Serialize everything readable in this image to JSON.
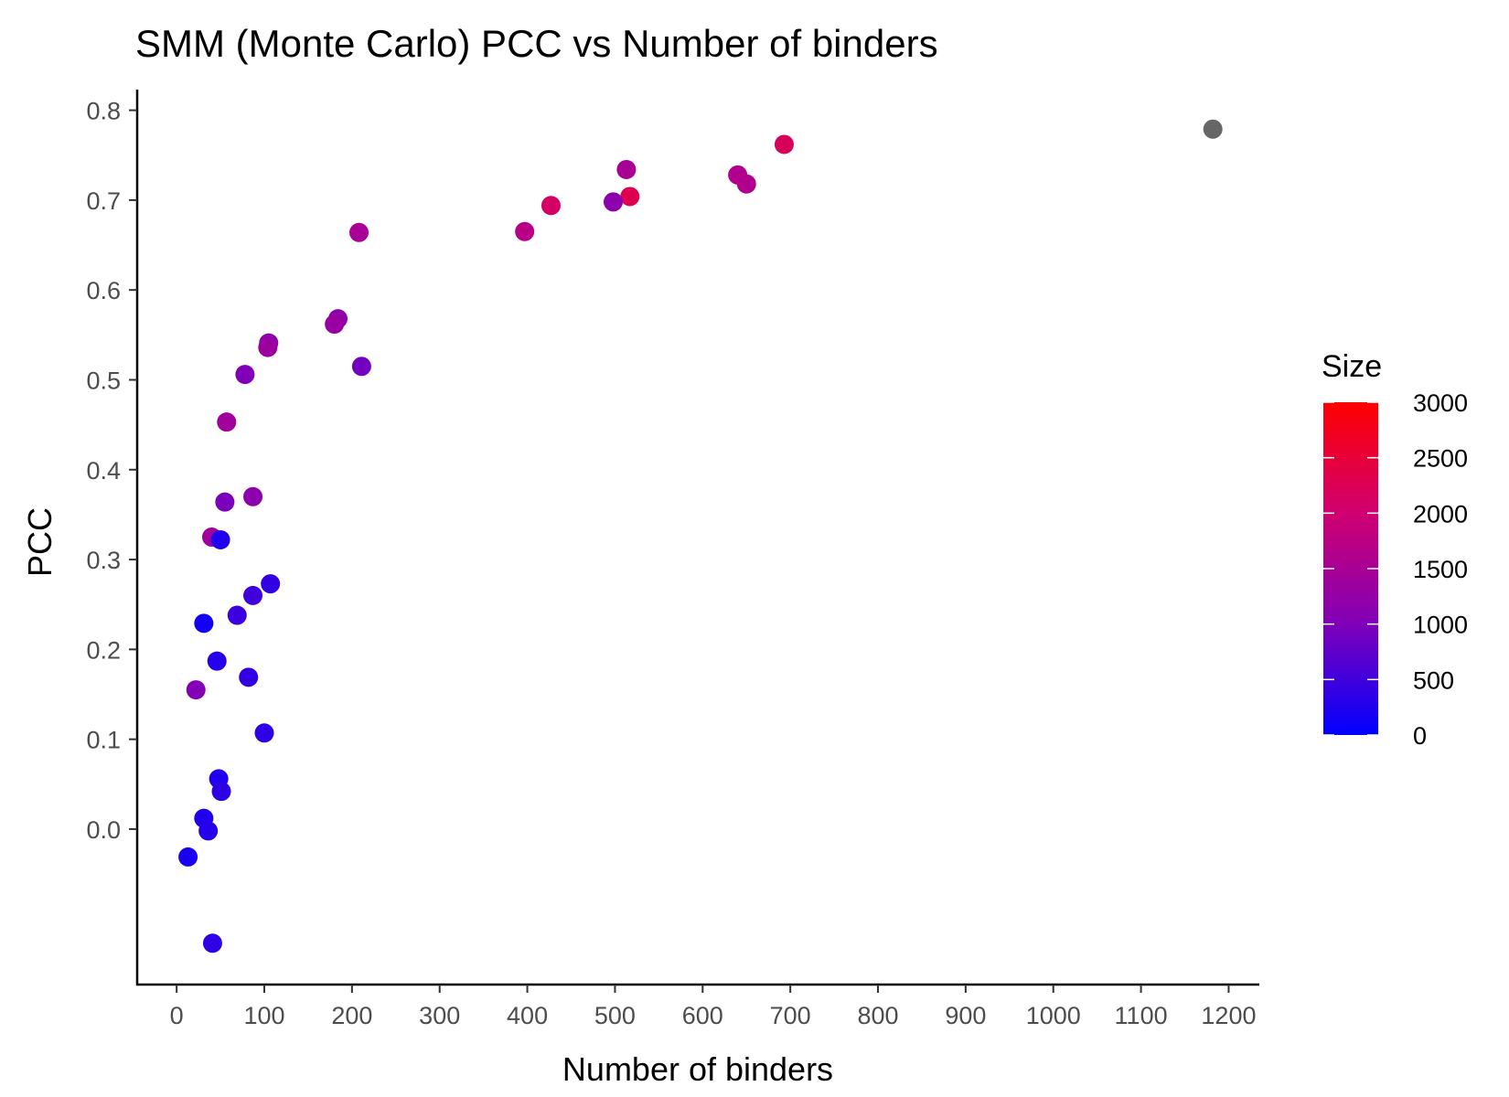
{
  "chart_data": {
    "type": "scatter",
    "title": "SMM (Monte Carlo) PCC vs Number of binders",
    "xlabel": "Number of binders",
    "ylabel": "PCC",
    "xlim": [
      -45,
      1235
    ],
    "ylim": [
      -0.173,
      0.823
    ],
    "x_ticks": [
      0,
      100,
      200,
      300,
      400,
      500,
      600,
      700,
      800,
      900,
      1000,
      1100,
      1200
    ],
    "x_tick_labels": [
      "0",
      "100",
      "200",
      "300",
      "400",
      "500",
      "600",
      "700",
      "800",
      "900",
      "1000",
      "1100",
      "1200"
    ],
    "y_ticks": [
      0.0,
      0.1,
      0.2,
      0.3,
      0.4,
      0.5,
      0.6,
      0.7,
      0.8
    ],
    "y_tick_labels": [
      "0.0",
      "0.1",
      "0.2",
      "0.3",
      "0.4",
      "0.5",
      "0.6",
      "0.7",
      "0.8"
    ],
    "grid": false,
    "legend": {
      "title": "Size",
      "placement": "right",
      "type": "colorbar",
      "range": [
        0,
        3000
      ],
      "breaks": [
        0,
        500,
        1000,
        1500,
        2000,
        2500,
        3000
      ],
      "break_labels": [
        "0",
        "500",
        "1000",
        "1500",
        "2000",
        "2500",
        "3000"
      ],
      "low_color": "#0000ff",
      "high_color": "#ff0000",
      "na_color": "#666666"
    },
    "points": [
      {
        "x": 1182,
        "y": 0.779,
        "size": null
      },
      {
        "x": 693,
        "y": 0.762,
        "size": 2200
      },
      {
        "x": 513,
        "y": 0.734,
        "size": 1500
      },
      {
        "x": 640,
        "y": 0.728,
        "size": 1600
      },
      {
        "x": 650,
        "y": 0.718,
        "size": 1600
      },
      {
        "x": 517,
        "y": 0.704,
        "size": 2300
      },
      {
        "x": 498,
        "y": 0.698,
        "size": 1150
      },
      {
        "x": 427,
        "y": 0.694,
        "size": 2100
      },
      {
        "x": 397,
        "y": 0.665,
        "size": 1700
      },
      {
        "x": 208,
        "y": 0.664,
        "size": 1500
      },
      {
        "x": 184,
        "y": 0.568,
        "size": 1200
      },
      {
        "x": 180,
        "y": 0.562,
        "size": 1300
      },
      {
        "x": 105,
        "y": 0.541,
        "size": 1150
      },
      {
        "x": 104,
        "y": 0.536,
        "size": 1350
      },
      {
        "x": 211,
        "y": 0.515,
        "size": 900
      },
      {
        "x": 78,
        "y": 0.506,
        "size": 1000
      },
      {
        "x": 57,
        "y": 0.453,
        "size": 1400
      },
      {
        "x": 87,
        "y": 0.37,
        "size": 1150
      },
      {
        "x": 55,
        "y": 0.364,
        "size": 950
      },
      {
        "x": 40,
        "y": 0.325,
        "size": 1400
      },
      {
        "x": 50,
        "y": 0.322,
        "size": 250
      },
      {
        "x": 107,
        "y": 0.273,
        "size": 400
      },
      {
        "x": 87,
        "y": 0.26,
        "size": 500
      },
      {
        "x": 69,
        "y": 0.238,
        "size": 450
      },
      {
        "x": 31,
        "y": 0.229,
        "size": 150
      },
      {
        "x": 46,
        "y": 0.187,
        "size": 300
      },
      {
        "x": 82,
        "y": 0.169,
        "size": 400
      },
      {
        "x": 22,
        "y": 0.155,
        "size": 1050
      },
      {
        "x": 100,
        "y": 0.107,
        "size": 350
      },
      {
        "x": 48,
        "y": 0.056,
        "size": 250
      },
      {
        "x": 51,
        "y": 0.042,
        "size": 350
      },
      {
        "x": 31,
        "y": 0.012,
        "size": 250
      },
      {
        "x": 36,
        "y": -0.002,
        "size": 300
      },
      {
        "x": 13,
        "y": -0.031,
        "size": 200
      },
      {
        "x": 41,
        "y": -0.127,
        "size": 350
      }
    ]
  }
}
